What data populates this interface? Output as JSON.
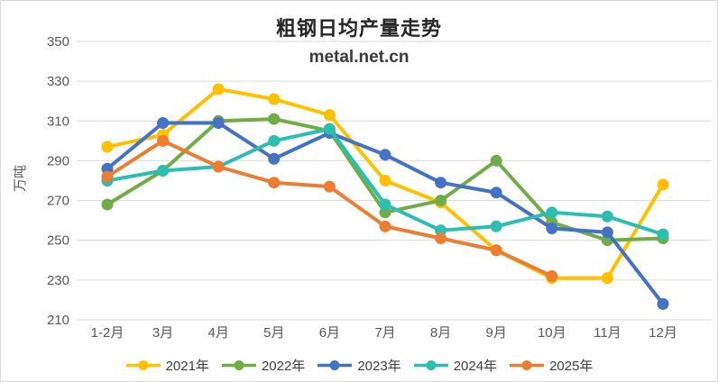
{
  "chart_data": {
    "type": "line",
    "title": "粗钢日均产量走势",
    "subtitle": "metal.net.cn",
    "ylabel": "万吨",
    "ylim": [
      210,
      350
    ],
    "yticks": [
      210,
      230,
      250,
      270,
      290,
      310,
      330,
      350
    ],
    "grid": true,
    "legend_position": "bottom",
    "categories": [
      "1-2月",
      "3月",
      "4月",
      "5月",
      "6月",
      "7月",
      "8月",
      "9月",
      "10月",
      "11月",
      "12月"
    ],
    "series": [
      {
        "name": "2021年",
        "color": "#FFC000",
        "values": [
          297,
          303,
          326,
          321,
          313,
          280,
          269,
          245,
          231,
          231,
          278
        ]
      },
      {
        "name": "2022年",
        "color": "#70AD47",
        "values": [
          268,
          285,
          310,
          311,
          305,
          264,
          270,
          290,
          259,
          250,
          251
        ]
      },
      {
        "name": "2023年",
        "color": "#4472C4",
        "values": [
          286,
          309,
          309,
          291,
          304,
          293,
          279,
          274,
          256,
          254,
          218
        ]
      },
      {
        "name": "2024年",
        "color": "#2CBEB1",
        "values": [
          280,
          285,
          287,
          300,
          306,
          268,
          255,
          257,
          264,
          262,
          253
        ]
      },
      {
        "name": "2025年",
        "color": "#ED7D31",
        "values": [
          282,
          300,
          287,
          279,
          277,
          257,
          251,
          245,
          232,
          null,
          null
        ]
      }
    ],
    "gridline_color": "#d9d9d9",
    "tick_color": "#595959"
  }
}
